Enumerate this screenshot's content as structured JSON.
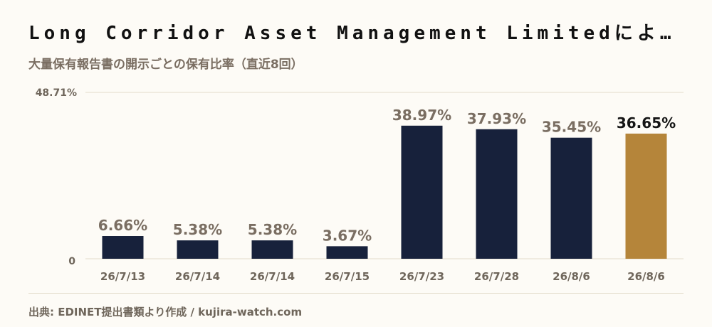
{
  "title": "Long Corridor Asset Management Limitedによ…",
  "subtitle": "大量保有報告書の開示ごとの保有比率（直近8回）",
  "source": "出典: EDINET提出書類より作成 / kujira-watch.com",
  "colors": {
    "bar": "#17213b",
    "highlight": "#b5853a",
    "grid": "#e2dbc9"
  },
  "chart_data": {
    "type": "bar",
    "title": "",
    "xlabel": "",
    "ylabel": "",
    "ylim": [
      0,
      48.71
    ],
    "yticks": [
      "0",
      "48.71%"
    ],
    "categories": [
      "26/7/13",
      "26/7/14",
      "26/7/14",
      "26/7/15",
      "26/7/23",
      "26/7/28",
      "26/8/6",
      "26/8/6"
    ],
    "values": [
      6.66,
      5.38,
      5.38,
      3.67,
      38.97,
      37.93,
      35.45,
      36.65
    ],
    "labels": [
      "6.66%",
      "5.38%",
      "5.38%",
      "3.67%",
      "38.97%",
      "37.93%",
      "35.45%",
      "36.65%"
    ],
    "highlight_index": 7,
    "grid": true
  }
}
